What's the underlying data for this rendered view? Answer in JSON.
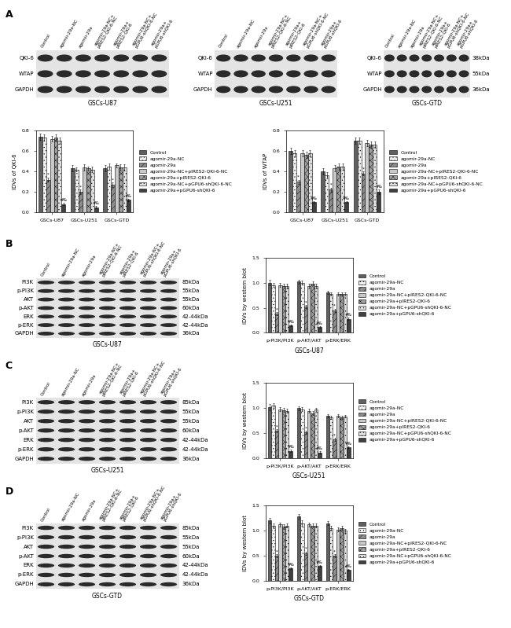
{
  "panel_labels": [
    "A",
    "B",
    "C",
    "D"
  ],
  "blot_lanes": [
    "Control",
    "agomir-29a-NC",
    "agomir-29a",
    "agomir-29a-NC+\npIRES2-QKI-6-NC",
    "agomir-29a+\npIRES2-QKI-6",
    "agomir-29a-NC+\npGPU6-shQKI-6-NC",
    "agomir-29a+\npGPU6-shQKI-6"
  ],
  "blots": [
    {
      "title": "GSCs-U87",
      "rows": [
        "QKI-6",
        "WTAP",
        "GAPDH"
      ]
    },
    {
      "title": "GSCs-U251",
      "rows": [
        "QKI-6",
        "WTAP",
        "GAPDH"
      ]
    },
    {
      "title": "GSCs-GTD",
      "rows": [
        "QKI-6",
        "WTAP",
        "GAPDH"
      ],
      "sizes": [
        "38kDa",
        "55kDa",
        "36kDa"
      ]
    },
    {
      "title": "GSCs-U87",
      "rows": [
        "PI3K",
        "p-PI3K",
        "AKT",
        "p-AKT",
        "ERK",
        "p-ERK",
        "GAPDH"
      ],
      "sizes": [
        "85kDa",
        "55kDa",
        "55kDa",
        "60kDa",
        "42-44kDa",
        "42-44kDa",
        "36kDa"
      ]
    },
    {
      "title": "GSCs-U251",
      "rows": [
        "PI3K",
        "p-PI3K",
        "AKT",
        "p-AKT",
        "ERK",
        "p-ERK",
        "GAPDH"
      ],
      "sizes": [
        "85kDa",
        "55kDa",
        "55kDa",
        "60kDa",
        "42-44kDa",
        "42-44kDa",
        "36kDa"
      ]
    },
    {
      "title": "GSCs-GTD",
      "rows": [
        "PI3K",
        "p-PI3K",
        "AKT",
        "p-AKT",
        "ERK",
        "p-ERK",
        "GAPDH"
      ],
      "sizes": [
        "85kDa",
        "55kDa",
        "55kDa",
        "60kDa",
        "42-44kDa",
        "42-44kDa",
        "36kDa"
      ]
    }
  ],
  "chart_data": [
    {
      "type": "bar",
      "ylabel": "IDVs of QKI-6",
      "categories": [
        "GSCs-U87",
        "GSCs-U251",
        "GSCs-GTD"
      ],
      "ylim": [
        0,
        0.8
      ],
      "yticks": [
        {
          "value": 0,
          "label": "0.0"
        },
        0.2,
        0.4,
        0.6,
        0.8
      ],
      "legend": "right",
      "series": [
        {
          "name": "Control",
          "color": "#606060",
          "values": [
            0.74,
            0.43,
            0.43
          ],
          "errors": [
            0.03,
            0.03,
            0.03
          ]
        },
        {
          "name": "agomir-29a-NC",
          "color": "#f0f0f0",
          "values": [
            0.73,
            0.42,
            0.45
          ],
          "errors": [
            0.03,
            0.02,
            0.03
          ]
        },
        {
          "name": "agomir-29a",
          "color": "#8c8c8c",
          "values": [
            0.32,
            0.2,
            0.27
          ],
          "errors": [
            0.02,
            0.02,
            0.02
          ]
        },
        {
          "name": "agomir-29a-NC+pIRES2-QKI-6-NC",
          "color": "#c8c8c8",
          "values": [
            0.72,
            0.44,
            0.46
          ],
          "errors": [
            0.03,
            0.03,
            0.02
          ]
        },
        {
          "name": "agomir-29a+pIRES2-QKI-6",
          "color": "#a0a0a0",
          "values": [
            0.73,
            0.43,
            0.44
          ],
          "errors": [
            0.03,
            0.02,
            0.03
          ]
        },
        {
          "name": "agomir-29a-NC+pGPU6-shQKI-6-NC",
          "color": "#e0e0e0",
          "values": [
            0.7,
            0.42,
            0.44
          ],
          "errors": [
            0.03,
            0.03,
            0.03
          ]
        },
        {
          "name": "agomir-29a+pGPU6-shQKI-6",
          "color": "#404040",
          "values": [
            0.08,
            0.05,
            0.12
          ],
          "errors": [
            0.01,
            0.01,
            0.01
          ]
        }
      ],
      "annotations": [
        {
          "series": "agomir-29a",
          "text": "*"
        },
        {
          "series": "agomir-29a+pGPU6-shQKI-6",
          "text": "#&"
        }
      ]
    },
    {
      "type": "bar",
      "ylabel": "IDVs of WTAP",
      "categories": [
        "GSCs-U87",
        "GSCs-U251",
        "GSCs-GTD"
      ],
      "ylim": [
        0,
        0.8
      ],
      "yticks": [
        {
          "value": 0,
          "label": "0.0"
        },
        0.2,
        0.4,
        0.6,
        0.8
      ],
      "legend": "right",
      "series": [
        {
          "name": "Control",
          "color": "#606060",
          "values": [
            0.6,
            0.4,
            0.7
          ],
          "errors": [
            0.03,
            0.03,
            0.03
          ]
        },
        {
          "name": "agomir-29a-NC",
          "color": "#f0f0f0",
          "values": [
            0.58,
            0.36,
            0.7
          ],
          "errors": [
            0.03,
            0.03,
            0.03
          ]
        },
        {
          "name": "agomir-29a",
          "color": "#8c8c8c",
          "values": [
            0.3,
            0.22,
            0.38
          ],
          "errors": [
            0.02,
            0.02,
            0.02
          ]
        },
        {
          "name": "agomir-29a-NC+pIRES2-QKI-6-NC",
          "color": "#c8c8c8",
          "values": [
            0.58,
            0.43,
            0.68
          ],
          "errors": [
            0.03,
            0.03,
            0.03
          ]
        },
        {
          "name": "agomir-29a+pIRES2-QKI-6",
          "color": "#a0a0a0",
          "values": [
            0.56,
            0.45,
            0.66
          ],
          "errors": [
            0.03,
            0.03,
            0.03
          ]
        },
        {
          "name": "agomir-29a-NC+pGPU6-shQKI-6-NC",
          "color": "#e0e0e0",
          "values": [
            0.58,
            0.45,
            0.66
          ],
          "errors": [
            0.03,
            0.03,
            0.03
          ]
        },
        {
          "name": "agomir-29a+pGPU6-shQKI-6",
          "color": "#404040",
          "values": [
            0.1,
            0.1,
            0.2
          ],
          "errors": [
            0.01,
            0.01,
            0.02
          ]
        }
      ],
      "annotations": [
        {
          "series": "agomir-29a",
          "text": "*"
        },
        {
          "series": "agomir-29a+pGPU6-shQKI-6",
          "text": "#&"
        }
      ]
    },
    {
      "type": "bar",
      "ylabel": "IDVs by western blot",
      "xlabel": "GSCs-U87",
      "categories": [
        "p-PI3K/PI3K",
        "p-AKT/AKT",
        "p-ERK/ERK"
      ],
      "ylim": [
        0,
        1.5
      ],
      "yticks": [
        {
          "value": 0,
          "label": "0.0"
        },
        0.5,
        {
          "value": 1,
          "label": "1.0"
        },
        1.5
      ],
      "legend": "right",
      "series": [
        {
          "name": "Control",
          "color": "#606060",
          "values": [
            1.0,
            1.02,
            0.8
          ],
          "errors": [
            0.05,
            0.04,
            0.03
          ]
        },
        {
          "name": "agomir-29a-NC",
          "color": "#f0f0f0",
          "values": [
            0.95,
            1.0,
            0.78
          ],
          "errors": [
            0.04,
            0.04,
            0.03
          ]
        },
        {
          "name": "agomir-29a",
          "color": "#8c8c8c",
          "values": [
            0.38,
            0.52,
            0.45
          ],
          "errors": [
            0.03,
            0.03,
            0.03
          ]
        },
        {
          "name": "agomir-29a-NC+pIRES2-QKI-6-NC",
          "color": "#c8c8c8",
          "values": [
            0.95,
            0.93,
            0.78
          ],
          "errors": [
            0.04,
            0.04,
            0.03
          ]
        },
        {
          "name": "agomir-29a+pIRES2-QKI-6",
          "color": "#a0a0a0",
          "values": [
            0.93,
            0.98,
            0.77
          ],
          "errors": [
            0.04,
            0.04,
            0.03
          ]
        },
        {
          "name": "agomir-29a-NC+pGPU6-shQKI-6-NC",
          "color": "#e0e0e0",
          "values": [
            0.93,
            0.93,
            0.78
          ],
          "errors": [
            0.04,
            0.04,
            0.03
          ]
        },
        {
          "name": "agomir-29a+pGPU6-shQKI-6",
          "color": "#404040",
          "values": [
            0.15,
            0.12,
            0.28
          ],
          "errors": [
            0.02,
            0.02,
            0.02
          ]
        }
      ],
      "annotations": [
        {
          "series": "agomir-29a",
          "text": "*"
        },
        {
          "series": "agomir-29a+pGPU6-shQKI-6",
          "text": "#&"
        }
      ]
    },
    {
      "type": "bar",
      "ylabel": "IDVs by western blot",
      "xlabel": "GSCs-U251",
      "categories": [
        "p-PI3K/PI3K",
        "p-AKT/AKT",
        "p-ERK/ERK"
      ],
      "ylim": [
        0,
        1.5
      ],
      "yticks": [
        {
          "value": 0,
          "label": "0.0"
        },
        0.5,
        {
          "value": 1,
          "label": "1.0"
        },
        1.5
      ],
      "legend": "right",
      "series": [
        {
          "name": "Control",
          "color": "#606060",
          "values": [
            1.02,
            1.0,
            0.85
          ],
          "errors": [
            0.06,
            0.04,
            0.03
          ]
        },
        {
          "name": "agomir-29a-NC",
          "color": "#f0f0f0",
          "values": [
            1.05,
            0.98,
            0.82
          ],
          "errors": [
            0.05,
            0.04,
            0.03
          ]
        },
        {
          "name": "agomir-29a",
          "color": "#8c8c8c",
          "values": [
            0.55,
            0.52,
            0.38
          ],
          "errors": [
            0.03,
            0.03,
            0.03
          ]
        },
        {
          "name": "agomir-29a-NC+pIRES2-QKI-6-NC",
          "color": "#c8c8c8",
          "values": [
            0.98,
            0.95,
            0.85
          ],
          "errors": [
            0.04,
            0.04,
            0.03
          ]
        },
        {
          "name": "agomir-29a+pIRES2-QKI-6",
          "color": "#a0a0a0",
          "values": [
            0.96,
            0.9,
            0.82
          ],
          "errors": [
            0.04,
            0.04,
            0.03
          ]
        },
        {
          "name": "agomir-29a-NC+pGPU6-shQKI-6-NC",
          "color": "#e0e0e0",
          "values": [
            0.95,
            0.97,
            0.84
          ],
          "errors": [
            0.04,
            0.04,
            0.03
          ]
        },
        {
          "name": "agomir-29a+pGPU6-shQKI-6",
          "color": "#404040",
          "values": [
            0.15,
            0.12,
            0.22
          ],
          "errors": [
            0.02,
            0.02,
            0.02
          ]
        }
      ],
      "annotations": [
        {
          "series": "agomir-29a",
          "text": "*"
        },
        {
          "series": "agomir-29a+pGPU6-shQKI-6",
          "text": "#&"
        }
      ]
    },
    {
      "type": "bar",
      "ylabel": "IDVs by western blot",
      "xlabel": "GSCs-GTD",
      "categories": [
        "p-PI3K/PI3K",
        "p-AKT/AKT",
        "p-ERK/ERK"
      ],
      "ylim": [
        0,
        1.5
      ],
      "yticks": [
        {
          "value": 0,
          "label": "0.0"
        },
        0.5,
        {
          "value": 1,
          "label": "1.0"
        },
        1.5
      ],
      "legend": "right",
      "series": [
        {
          "name": "Control",
          "color": "#606060",
          "values": [
            1.2,
            1.28,
            1.15
          ],
          "errors": [
            0.05,
            0.05,
            0.04
          ]
        },
        {
          "name": "agomir-29a-NC",
          "color": "#f0f0f0",
          "values": [
            1.1,
            1.15,
            1.05
          ],
          "errors": [
            0.05,
            0.05,
            0.04
          ]
        },
        {
          "name": "agomir-29a",
          "color": "#8c8c8c",
          "values": [
            0.5,
            0.55,
            0.5
          ],
          "errors": [
            0.03,
            0.03,
            0.03
          ]
        },
        {
          "name": "agomir-29a-NC+pIRES2-QKI-6-NC",
          "color": "#c8c8c8",
          "values": [
            1.12,
            1.12,
            1.02
          ],
          "errors": [
            0.04,
            0.04,
            0.04
          ]
        },
        {
          "name": "agomir-29a+pIRES2-QKI-6",
          "color": "#a0a0a0",
          "values": [
            1.08,
            1.1,
            1.05
          ],
          "errors": [
            0.04,
            0.04,
            0.04
          ]
        },
        {
          "name": "agomir-29a-NC+pGPU6-shQKI-6-NC",
          "color": "#e0e0e0",
          "values": [
            1.1,
            1.1,
            1.0
          ],
          "errors": [
            0.04,
            0.04,
            0.04
          ]
        },
        {
          "name": "agomir-29a+pGPU6-shQKI-6",
          "color": "#404040",
          "values": [
            0.25,
            0.3,
            0.22
          ],
          "errors": [
            0.02,
            0.02,
            0.02
          ]
        }
      ],
      "annotations": [
        {
          "series": "agomir-29a",
          "text": "*"
        },
        {
          "series": "agomir-29a+pGPU6-shQKI-6",
          "text": "#&"
        }
      ]
    }
  ]
}
